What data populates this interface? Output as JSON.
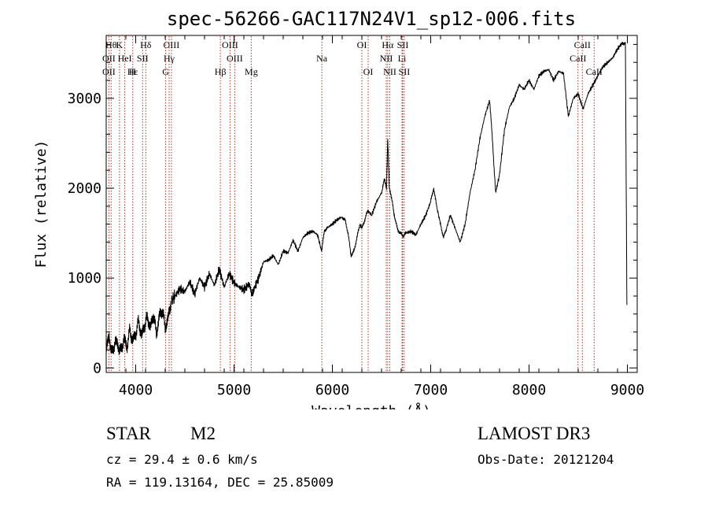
{
  "chart_data": {
    "type": "line",
    "title": "spec-56266-GAC117N24V1_sp12-006.fits",
    "xlabel": "Wavelength (Å)",
    "ylabel": "Flux (relative)",
    "xlim": [
      3700,
      9100
    ],
    "ylim": [
      -50,
      3700
    ],
    "x_ticks": [
      4000,
      5000,
      6000,
      7000,
      8000,
      9000
    ],
    "x_tick_labels": [
      "4000",
      "5000",
      "6000",
      "7000",
      "8000",
      "9000"
    ],
    "y_ticks": [
      0,
      1000,
      2000,
      3000
    ],
    "y_tick_labels": [
      "0",
      "1000",
      "2000",
      "3000"
    ],
    "series": [
      {
        "name": "spectrum",
        "x": [
          3700,
          3730,
          3760,
          3790,
          3820,
          3850,
          3880,
          3910,
          3940,
          3970,
          4000,
          4030,
          4060,
          4090,
          4120,
          4150,
          4180,
          4210,
          4240,
          4270,
          4300,
          4330,
          4360,
          4400,
          4450,
          4500,
          4550,
          4600,
          4650,
          4700,
          4750,
          4800,
          4850,
          4900,
          4950,
          5000,
          5050,
          5100,
          5150,
          5180,
          5200,
          5250,
          5300,
          5350,
          5400,
          5450,
          5500,
          5550,
          5600,
          5650,
          5700,
          5750,
          5800,
          5850,
          5890,
          5920,
          5950,
          6000,
          6050,
          6100,
          6130,
          6160,
          6190,
          6220,
          6250,
          6280,
          6300,
          6330,
          6360,
          6400,
          6450,
          6500,
          6530,
          6550,
          6563,
          6580,
          6600,
          6630,
          6660,
          6690,
          6720,
          6750,
          6800,
          6850,
          6900,
          6950,
          7000,
          7030,
          7060,
          7100,
          7130,
          7160,
          7200,
          7250,
          7300,
          7350,
          7400,
          7450,
          7500,
          7550,
          7600,
          7630,
          7660,
          7700,
          7750,
          7800,
          7850,
          7900,
          7950,
          8000,
          8050,
          8100,
          8150,
          8200,
          8250,
          8300,
          8350,
          8400,
          8450,
          8500,
          8550,
          8600,
          8650,
          8700,
          8750,
          8800,
          8850,
          8900,
          8950,
          8980,
          8995
        ],
        "y": [
          200,
          350,
          150,
          300,
          250,
          180,
          330,
          230,
          420,
          300,
          380,
          520,
          350,
          480,
          560,
          440,
          600,
          380,
          570,
          650,
          450,
          550,
          750,
          800,
          880,
          850,
          960,
          820,
          1000,
          900,
          1050,
          920,
          1100,
          900,
          1050,
          950,
          900,
          870,
          930,
          820,
          870,
          1000,
          1180,
          1200,
          1250,
          1150,
          1300,
          1280,
          1420,
          1300,
          1450,
          1500,
          1520,
          1480,
          1300,
          1530,
          1560,
          1600,
          1650,
          1680,
          1640,
          1500,
          1250,
          1300,
          1450,
          1600,
          1550,
          1650,
          1750,
          1700,
          1850,
          1950,
          2100,
          2000,
          2550,
          2000,
          1900,
          1700,
          1550,
          1500,
          1470,
          1500,
          1520,
          1480,
          1600,
          1700,
          1850,
          2000,
          1800,
          1600,
          1450,
          1550,
          1700,
          1550,
          1400,
          1600,
          1950,
          2200,
          2550,
          2800,
          2980,
          2500,
          1950,
          2150,
          2650,
          2900,
          3000,
          3150,
          3100,
          3200,
          3100,
          3250,
          3300,
          3320,
          3200,
          3300,
          3280,
          2800,
          3000,
          3050,
          2880,
          3050,
          3150,
          3250,
          3350,
          3400,
          3450,
          3550,
          3620,
          3600,
          700
        ]
      }
    ],
    "line_markers": [
      {
        "wavelength": 3750,
        "label": "Hθ",
        "row": 0
      },
      {
        "wavelength": 3835,
        "label": "K",
        "row": 0
      },
      {
        "wavelength": 4102,
        "label": "Hδ",
        "row": 0
      },
      {
        "wavelength": 4363,
        "label": "OIII",
        "row": 0
      },
      {
        "wavelength": 4959,
        "label": "OIII",
        "row": 0
      },
      {
        "wavelength": 6300,
        "label": "OI",
        "row": 0
      },
      {
        "wavelength": 6563,
        "label": "Hα",
        "row": 0
      },
      {
        "wavelength": 6716,
        "label": "SII",
        "row": 0
      },
      {
        "wavelength": 8542,
        "label": "CaII",
        "row": 0
      },
      {
        "wavelength": 3727,
        "label": "OII",
        "row": 1
      },
      {
        "wavelength": 3889,
        "label": "HeI",
        "row": 1
      },
      {
        "wavelength": 4070,
        "label": "SII",
        "row": 1
      },
      {
        "wavelength": 4340,
        "label": "Hγ",
        "row": 1
      },
      {
        "wavelength": 5007,
        "label": "OIII",
        "row": 1
      },
      {
        "wavelength": 5893,
        "label": "Na",
        "row": 1
      },
      {
        "wavelength": 6548,
        "label": "NII",
        "row": 1
      },
      {
        "wavelength": 6708,
        "label": "Li",
        "row": 1
      },
      {
        "wavelength": 8498,
        "label": "CaII",
        "row": 1
      },
      {
        "wavelength": 3727,
        "label": "OII",
        "row": 2
      },
      {
        "wavelength": 3970,
        "label": "Hε",
        "row": 2
      },
      {
        "wavelength": 3968,
        "label": "H",
        "row": 2
      },
      {
        "wavelength": 4305,
        "label": "G",
        "row": 2
      },
      {
        "wavelength": 4861,
        "label": "Hβ",
        "row": 2
      },
      {
        "wavelength": 5175,
        "label": "Mg",
        "row": 2
      },
      {
        "wavelength": 6364,
        "label": "OI",
        "row": 2
      },
      {
        "wavelength": 6584,
        "label": "NII",
        "row": 2
      },
      {
        "wavelength": 6731,
        "label": "SII",
        "row": 2
      },
      {
        "wavelength": 8662,
        "label": "CaII",
        "row": 2
      }
    ]
  },
  "info": {
    "object_class": "STAR",
    "subclass": "M2",
    "survey": "LAMOST DR3",
    "redshift": "cz = 29.4 ± 0.6 km/s",
    "obs_date": "Obs-Date: 20121204",
    "coords": "RA = 119.13164, DEC =  25.85009"
  },
  "colors": {
    "axis": "#000000",
    "line_marker": "#b03020",
    "spectrum": "#000000"
  }
}
